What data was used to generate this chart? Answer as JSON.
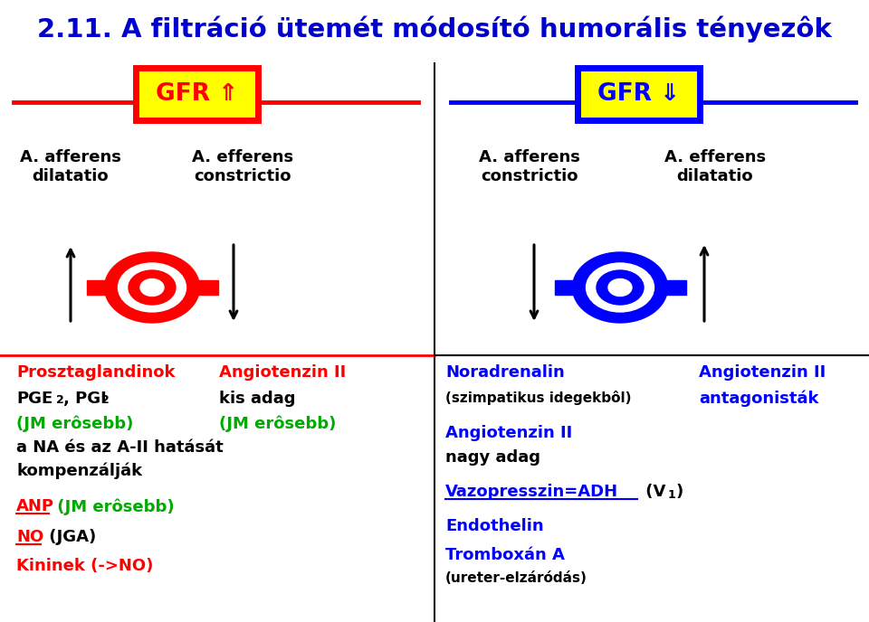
{
  "title": "2.11. A filtráció ütemét módosító humorális tényezôk",
  "title_color": "#0000CC",
  "bg_color": "#FFFFFF",
  "red_color": "#FF0000",
  "blue_color": "#0000FF",
  "green_color": "#00AA00",
  "black_color": "#000000",
  "yellow_color": "#FFFF00",
  "gfr_up_label": "GFR ⇑",
  "gfr_down_label": "GFR ⇓"
}
